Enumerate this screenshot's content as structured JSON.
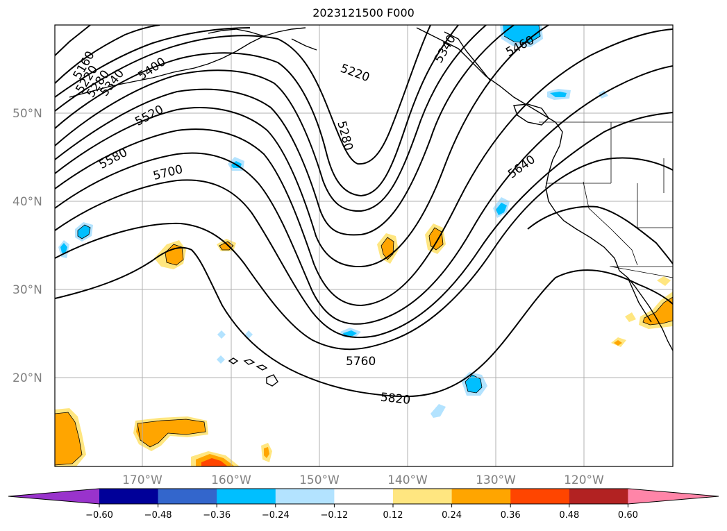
{
  "title": "2023121500 F000",
  "lat_labels": [
    "50°N",
    "40°N",
    "30°N",
    "20°N"
  ],
  "lon_labels": [
    "170°W",
    "160°W",
    "150°W",
    "140°W",
    "130°W",
    "120°W"
  ],
  "contour_labels": [
    "5160",
    "5220",
    "5280",
    "5340",
    "5400",
    "5520",
    "5580",
    "5700",
    "5220",
    "5280",
    "5760",
    "5820",
    "5640",
    "5460",
    "5340"
  ],
  "colorbar": {
    "colors": [
      "#9933cc",
      "#000099",
      "#3366cc",
      "#00bfff",
      "#b3e3ff",
      "#ffffff",
      "#ffe680",
      "#ffa500",
      "#ff4500",
      "#b22222",
      "#ff85a8"
    ],
    "tick_labels": [
      "−0.60",
      "−0.48",
      "−0.36",
      "−0.24",
      "−0.12",
      "0.12",
      "0.24",
      "0.36",
      "0.48",
      "0.60"
    ]
  },
  "colors": {
    "contour": "#000000",
    "grid": "#b0b0b0",
    "positive_light": "#ffe680",
    "positive": "#ffa500",
    "positive_strong": "#ff4500",
    "negative_light": "#b3e3ff",
    "negative": "#00bfff"
  }
}
